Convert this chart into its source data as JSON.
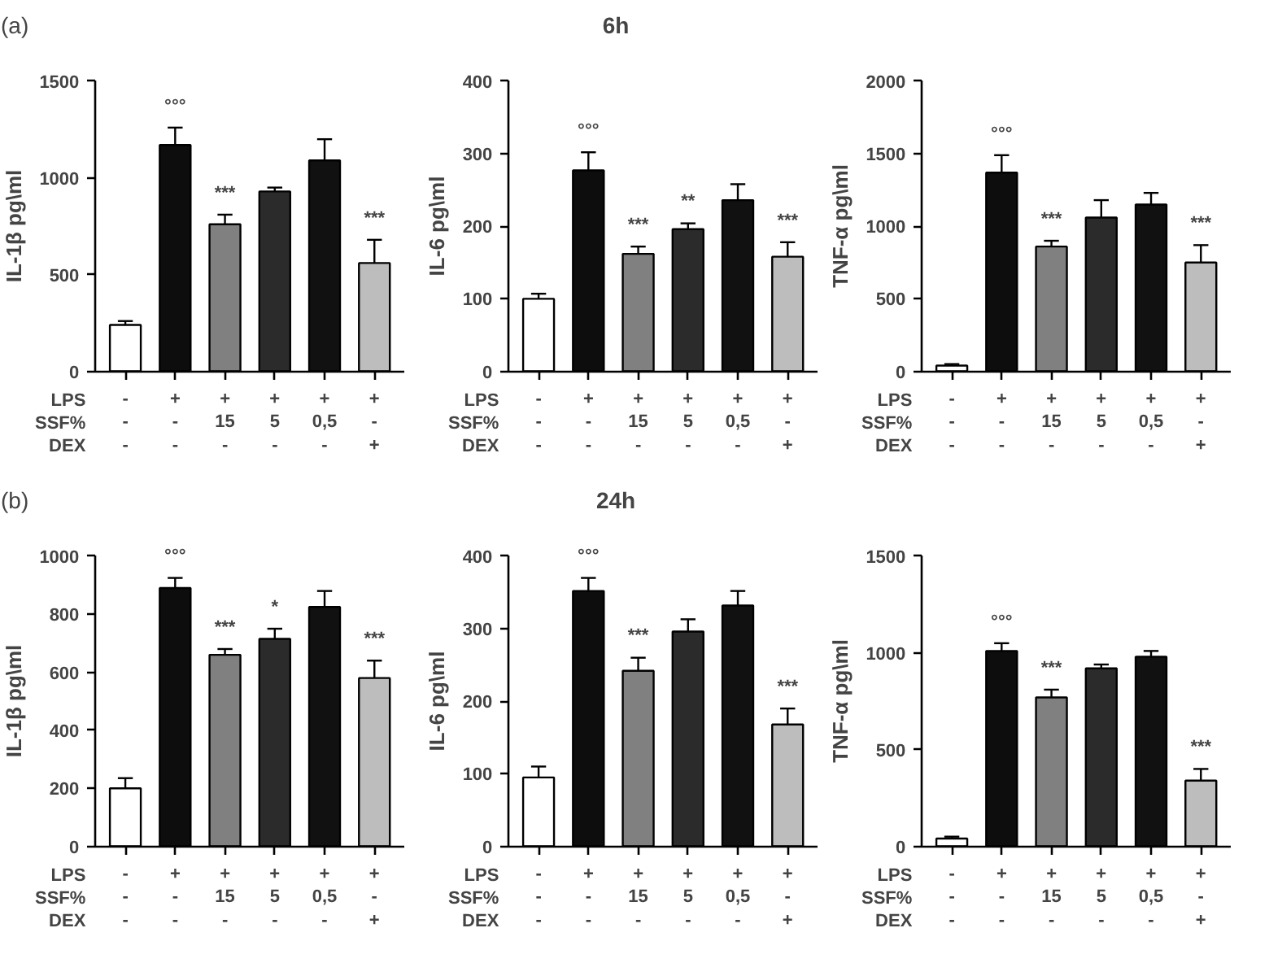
{
  "chart_data": [
    {
      "type": "bar",
      "title": "(a)",
      "ylabel": "IL-1β pg\\ml",
      "categories": [
        "-\n-\n-",
        "+\n-\n-",
        "+\n15\n-",
        "+\n5\n-",
        "+\n0,5\n-",
        "+\n-\n+"
      ],
      "values": [
        240,
        1170,
        760,
        930,
        1090,
        560
      ],
      "errors": [
        [
          240,
          260
        ],
        [
          1170,
          1260
        ],
        [
          760,
          810
        ],
        [
          930,
          950
        ],
        [
          1090,
          1200
        ],
        [
          560,
          680
        ]
      ],
      "value_labels": [
        null,
        "°°°",
        "***",
        null,
        null,
        "***"
      ],
      "colors": [
        "#ffffff",
        "#0d0d0d",
        "#808080",
        "#2b2b2b",
        "#111111",
        "#bdbdbd"
      ],
      "ylim": [
        0,
        1500
      ],
      "yticks": [
        0,
        500,
        1000,
        1500
      ],
      "grid": false,
      "annotations": [
        "LPS",
        "SSF%",
        "DEX"
      ]
    },
    {
      "type": "bar",
      "title": "6h",
      "ylabel": "IL-6 pg\\ml",
      "categories": [
        "-\n-\n-",
        "+\n-\n-",
        "+\n15\n-",
        "+\n5\n-",
        "+\n0,5\n-",
        "+\n-\n+"
      ],
      "values": [
        100,
        277,
        162,
        196,
        236,
        158
      ],
      "errors": [
        [
          100,
          107
        ],
        [
          277,
          302
        ],
        [
          162,
          172
        ],
        [
          196,
          204
        ],
        [
          236,
          258
        ],
        [
          158,
          178
        ]
      ],
      "value_labels": [
        null,
        "°°°",
        "***",
        "**",
        null,
        "***"
      ],
      "colors": [
        "#ffffff",
        "#0d0d0d",
        "#808080",
        "#2b2b2b",
        "#111111",
        "#bdbdbd"
      ],
      "ylim": [
        0,
        400
      ],
      "yticks": [
        0,
        100,
        200,
        300,
        400
      ],
      "grid": false,
      "annotations": [
        "LPS",
        "SSF%",
        "DEX"
      ]
    },
    {
      "type": "bar",
      "ylabel": "TNF-α pg\\ml",
      "categories": [
        "-\n-\n-",
        "+\n-\n-",
        "+\n15\n-",
        "+\n5\n-",
        "+\n0,5\n-",
        "+\n-\n+"
      ],
      "values": [
        40,
        1370,
        860,
        1060,
        1150,
        750
      ],
      "errors": [
        [
          40,
          50
        ],
        [
          1370,
          1490
        ],
        [
          860,
          900
        ],
        [
          1060,
          1180
        ],
        [
          1150,
          1230
        ],
        [
          750,
          870
        ]
      ],
      "value_labels": [
        null,
        "°°°",
        "***",
        null,
        null,
        "***"
      ],
      "colors": [
        "#ffffff",
        "#0d0d0d",
        "#808080",
        "#2b2b2b",
        "#111111",
        "#bdbdbd"
      ],
      "ylim": [
        0,
        2000
      ],
      "yticks": [
        0,
        500,
        1000,
        1500,
        2000
      ],
      "grid": false,
      "annotations": [
        "LPS",
        "SSF%",
        "DEX"
      ]
    },
    {
      "type": "bar",
      "title": "(b)",
      "ylabel": "IL-1β pg\\ml",
      "categories": [
        "-\n-\n-",
        "+\n-\n-",
        "+\n15\n-",
        "+\n5\n-",
        "+\n0,5\n-",
        "+\n-\n+"
      ],
      "values": [
        200,
        890,
        660,
        715,
        825,
        580
      ],
      "errors": [
        [
          200,
          235
        ],
        [
          890,
          925
        ],
        [
          660,
          680
        ],
        [
          715,
          750
        ],
        [
          825,
          880
        ],
        [
          580,
          640
        ]
      ],
      "value_labels": [
        null,
        "°°°",
        "***",
        "*",
        null,
        "***"
      ],
      "colors": [
        "#ffffff",
        "#0d0d0d",
        "#808080",
        "#2b2b2b",
        "#111111",
        "#bdbdbd"
      ],
      "ylim": [
        0,
        1000
      ],
      "yticks": [
        0,
        200,
        400,
        600,
        800,
        1000
      ],
      "grid": false,
      "annotations": [
        "LPS",
        "SSF%",
        "DEX"
      ]
    },
    {
      "type": "bar",
      "title": "24h",
      "ylabel": "IL-6 pg\\ml",
      "categories": [
        "-\n-\n-",
        "+\n-\n-",
        "+\n15\n-",
        "+\n5\n-",
        "+\n0,5\n-",
        "+\n-\n+"
      ],
      "values": [
        95,
        352,
        242,
        296,
        332,
        168
      ],
      "errors": [
        [
          95,
          110
        ],
        [
          352,
          370
        ],
        [
          242,
          260
        ],
        [
          296,
          313
        ],
        [
          332,
          352
        ],
        [
          168,
          190
        ]
      ],
      "value_labels": [
        null,
        "°°°",
        "***",
        null,
        null,
        "***"
      ],
      "colors": [
        "#ffffff",
        "#0d0d0d",
        "#808080",
        "#2b2b2b",
        "#111111",
        "#bdbdbd"
      ],
      "ylim": [
        0,
        400
      ],
      "yticks": [
        0,
        100,
        200,
        300,
        400
      ],
      "grid": false,
      "annotations": [
        "LPS",
        "SSF%",
        "DEX"
      ]
    },
    {
      "type": "bar",
      "ylabel": "TNF-α pg\\ml",
      "categories": [
        "-\n-\n-",
        "+\n-\n-",
        "+\n15\n-",
        "+\n5\n-",
        "+\n0,5\n-",
        "+\n-\n+"
      ],
      "values": [
        40,
        1010,
        770,
        920,
        980,
        340
      ],
      "errors": [
        [
          40,
          50
        ],
        [
          1010,
          1050
        ],
        [
          770,
          810
        ],
        [
          920,
          940
        ],
        [
          980,
          1010
        ],
        [
          340,
          400
        ]
      ],
      "value_labels": [
        null,
        "°°°",
        "***",
        null,
        null,
        "***"
      ],
      "colors": [
        "#ffffff",
        "#0d0d0d",
        "#808080",
        "#2b2b2b",
        "#111111",
        "#bdbdbd"
      ],
      "ylim": [
        0,
        1500
      ],
      "yticks": [
        0,
        500,
        1000,
        1500
      ],
      "grid": false,
      "annotations": [
        "LPS",
        "SSF%",
        "DEX"
      ]
    }
  ]
}
